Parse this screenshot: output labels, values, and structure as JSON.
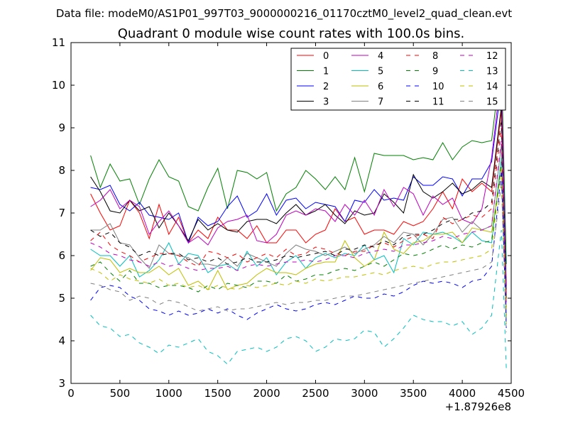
{
  "figure": {
    "suptitle": "Data file: modeM0/AS1P01_997T03_9000000216_01170cztM0_level2_quad_clean.evt",
    "title": "Quadrant 0 module wise count rates with 100.0s bins.",
    "x_offset_label": "+1.87926e8"
  },
  "chart_data": {
    "type": "line",
    "title": "Quadrant 0 module wise count rates with 100.0s bins.",
    "xlabel": "",
    "ylabel": "",
    "xlim": [
      0,
      4500
    ],
    "ylim": [
      3,
      11
    ],
    "x_offset": "+1.87926e8",
    "grid": false,
    "legend_position": "top-right",
    "legend_columns": 4,
    "xticks": [
      0,
      500,
      1000,
      1500,
      2000,
      2500,
      3000,
      3500,
      4000,
      4500
    ],
    "xtick_labels": [
      "0",
      "500",
      "1000",
      "1500",
      "2000",
      "2500",
      "3000",
      "3500",
      "4000",
      "4500"
    ],
    "yticks": [
      3,
      4,
      5,
      6,
      7,
      8,
      9,
      10,
      11
    ],
    "ytick_labels": [
      "3",
      "4",
      "5",
      "6",
      "7",
      "8",
      "9",
      "10",
      "11"
    ],
    "x": [
      200,
      300,
      400,
      500,
      600,
      700,
      800,
      900,
      1000,
      1100,
      1200,
      1300,
      1400,
      1500,
      1600,
      1700,
      1800,
      1900,
      2000,
      2100,
      2200,
      2300,
      2400,
      2500,
      2600,
      2700,
      2800,
      2900,
      3000,
      3100,
      3200,
      3300,
      3400,
      3500,
      3600,
      3700,
      3800,
      3900,
      4000,
      4100,
      4200,
      4300,
      4400,
      4450
    ],
    "series": [
      {
        "name": "0",
        "color": "#ff0000",
        "dash": "solid",
        "values": [
          7.45,
          7.0,
          6.6,
          6.7,
          7.3,
          7.0,
          6.4,
          7.2,
          6.5,
          6.9,
          6.3,
          6.6,
          6.4,
          6.9,
          6.6,
          6.6,
          6.4,
          6.7,
          6.3,
          6.3,
          6.6,
          6.6,
          6.3,
          6.5,
          6.6,
          7.1,
          6.8,
          6.9,
          6.5,
          6.6,
          6.6,
          6.5,
          6.8,
          6.7,
          6.8,
          7.1,
          7.5,
          7.1,
          7.8,
          7.5,
          7.7,
          7.5,
          9.4,
          5.3
        ]
      },
      {
        "name": "1",
        "color": "#008000",
        "dash": "solid",
        "values": [
          8.35,
          7.6,
          8.15,
          7.75,
          7.8,
          7.2,
          7.8,
          8.25,
          7.85,
          7.75,
          7.15,
          7.05,
          7.6,
          8.05,
          7.1,
          8.0,
          7.95,
          7.8,
          7.95,
          7.05,
          7.45,
          7.6,
          8.0,
          7.8,
          7.55,
          7.85,
          7.55,
          8.3,
          7.5,
          8.4,
          8.35,
          8.35,
          8.35,
          8.25,
          8.3,
          8.25,
          8.65,
          8.25,
          8.55,
          8.7,
          8.65,
          8.7,
          10.6,
          5.8
        ]
      },
      {
        "name": "2",
        "color": "#0000ff",
        "dash": "solid",
        "values": [
          7.6,
          7.55,
          7.65,
          7.2,
          7.05,
          7.25,
          6.95,
          6.9,
          6.85,
          7.0,
          6.3,
          6.9,
          6.7,
          6.8,
          7.15,
          7.4,
          6.9,
          7.05,
          7.45,
          6.95,
          7.3,
          7.35,
          7.1,
          7.25,
          7.2,
          7.15,
          6.8,
          7.3,
          7.25,
          7.55,
          7.3,
          7.35,
          7.3,
          7.85,
          7.65,
          7.65,
          7.85,
          7.8,
          7.4,
          7.8,
          7.8,
          8.2,
          10.0,
          5.2
        ]
      },
      {
        "name": "3",
        "color": "#000000",
        "dash": "solid",
        "values": [
          7.85,
          7.5,
          7.05,
          7.0,
          7.3,
          7.05,
          7.15,
          6.65,
          7.0,
          6.7,
          6.35,
          6.85,
          6.6,
          6.75,
          6.6,
          6.55,
          6.8,
          6.85,
          6.85,
          6.75,
          7.0,
          7.2,
          6.95,
          7.05,
          7.2,
          6.95,
          6.75,
          7.05,
          6.95,
          7.0,
          7.45,
          7.25,
          7.0,
          7.9,
          7.5,
          7.35,
          7.5,
          7.7,
          7.45,
          7.55,
          7.75,
          7.6,
          9.5,
          5.0
        ]
      },
      {
        "name": "4",
        "color": "#bf00bf",
        "dash": "solid",
        "values": [
          7.15,
          7.3,
          7.55,
          7.1,
          7.3,
          7.15,
          6.5,
          6.8,
          7.05,
          6.7,
          6.3,
          6.45,
          6.25,
          6.65,
          6.8,
          6.85,
          6.95,
          6.35,
          6.3,
          6.5,
          6.95,
          7.05,
          6.95,
          7.1,
          7.05,
          6.8,
          7.2,
          6.95,
          7.3,
          6.95,
          7.55,
          7.15,
          7.6,
          7.45,
          6.95,
          7.4,
          7.2,
          7.35,
          6.85,
          6.75,
          7.1,
          8.3,
          10.3,
          4.6
        ]
      },
      {
        "name": "5",
        "color": "#00bfbf",
        "dash": "solid",
        "values": [
          6.15,
          6.0,
          6.0,
          5.75,
          6.0,
          5.5,
          5.65,
          5.9,
          6.3,
          5.8,
          6.05,
          6.0,
          5.6,
          5.75,
          5.8,
          5.65,
          6.1,
          5.75,
          5.95,
          5.55,
          5.85,
          6.0,
          5.7,
          5.95,
          6.05,
          5.95,
          6.05,
          6.0,
          6.25,
          5.9,
          6.0,
          5.6,
          6.4,
          6.25,
          6.55,
          6.5,
          6.55,
          6.45,
          6.3,
          6.55,
          6.35,
          6.3,
          8.3,
          4.5
        ]
      },
      {
        "name": "6",
        "color": "#bfbf00",
        "dash": "solid",
        "values": [
          5.65,
          5.95,
          5.9,
          5.6,
          5.7,
          5.6,
          5.6,
          5.75,
          5.55,
          5.7,
          5.3,
          5.4,
          5.2,
          5.65,
          5.2,
          5.3,
          5.35,
          5.55,
          5.7,
          5.6,
          5.6,
          5.55,
          5.7,
          5.8,
          5.85,
          5.85,
          6.35,
          5.95,
          5.75,
          5.9,
          6.55,
          6.15,
          6.05,
          6.3,
          6.35,
          6.5,
          6.5,
          6.55,
          6.3,
          6.65,
          6.6,
          6.55,
          8.0,
          4.4
        ]
      },
      {
        "name": "7",
        "color": "#808080",
        "dash": "solid",
        "values": [
          6.6,
          6.6,
          6.75,
          6.3,
          6.25,
          5.95,
          5.7,
          6.25,
          6.05,
          6.0,
          5.95,
          5.8,
          5.8,
          5.75,
          5.95,
          5.75,
          6.05,
          5.95,
          5.85,
          5.75,
          6.05,
          6.25,
          6.15,
          6.1,
          6.0,
          6.1,
          6.2,
          6.05,
          6.15,
          6.25,
          6.45,
          6.3,
          6.55,
          6.5,
          6.25,
          6.5,
          6.85,
          6.9,
          6.55,
          6.8,
          6.6,
          6.7,
          8.6,
          4.6
        ]
      },
      {
        "name": "8",
        "color": "#ff0000",
        "dash": "dashed",
        "values": [
          6.35,
          6.55,
          6.25,
          6.1,
          6.0,
          5.85,
          5.95,
          6.05,
          6.05,
          6.0,
          5.85,
          5.75,
          6.1,
          6.05,
          5.95,
          6.05,
          5.85,
          5.95,
          6.05,
          5.95,
          6.15,
          6.0,
          6.05,
          6.2,
          6.15,
          6.05,
          6.0,
          6.1,
          6.1,
          6.25,
          6.3,
          6.2,
          6.35,
          6.45,
          6.5,
          6.4,
          6.9,
          6.75,
          6.85,
          6.95,
          6.9,
          7.1,
          9.0,
          5.0
        ]
      },
      {
        "name": "9",
        "color": "#008000",
        "dash": "dashed",
        "values": [
          5.75,
          5.85,
          5.6,
          5.4,
          5.65,
          5.35,
          5.35,
          5.25,
          5.3,
          5.3,
          5.25,
          5.15,
          5.3,
          5.2,
          5.35,
          5.3,
          5.25,
          5.4,
          5.4,
          5.35,
          5.55,
          5.4,
          5.45,
          5.55,
          5.55,
          5.65,
          5.7,
          5.65,
          5.75,
          5.85,
          5.75,
          5.9,
          6.05,
          6.0,
          6.05,
          6.15,
          6.25,
          6.15,
          6.25,
          6.2,
          6.3,
          6.35,
          8.2,
          4.8
        ]
      },
      {
        "name": "10",
        "color": "#0000ff",
        "dash": "dashed",
        "values": [
          4.95,
          5.25,
          5.3,
          5.25,
          5.05,
          4.95,
          4.75,
          4.7,
          4.6,
          4.7,
          4.6,
          4.65,
          4.75,
          4.65,
          4.75,
          4.6,
          4.5,
          4.65,
          4.75,
          4.85,
          4.75,
          4.7,
          4.75,
          4.85,
          4.9,
          4.85,
          4.95,
          5.05,
          5.0,
          5.0,
          5.1,
          5.05,
          5.15,
          5.3,
          5.4,
          5.35,
          5.4,
          5.35,
          5.25,
          5.4,
          5.45,
          5.75,
          8.0,
          4.3
        ]
      },
      {
        "name": "11",
        "color": "#000000",
        "dash": "dashed",
        "values": [
          6.6,
          6.45,
          6.55,
          6.3,
          6.2,
          6.0,
          6.1,
          6.0,
          6.05,
          6.05,
          5.9,
          5.95,
          5.85,
          5.95,
          5.8,
          5.85,
          5.95,
          5.85,
          5.85,
          5.9,
          6.0,
          5.95,
          6.0,
          6.05,
          6.1,
          6.0,
          6.15,
          6.15,
          6.25,
          6.2,
          6.35,
          6.25,
          6.45,
          6.5,
          6.5,
          6.6,
          6.75,
          6.85,
          6.85,
          7.0,
          7.05,
          7.25,
          9.2,
          5.0
        ]
      },
      {
        "name": "12",
        "color": "#bf00bf",
        "dash": "dashed",
        "values": [
          6.3,
          6.2,
          6.05,
          6.0,
          5.9,
          5.85,
          5.75,
          5.85,
          5.75,
          5.8,
          5.7,
          5.65,
          5.7,
          5.7,
          5.75,
          5.65,
          5.75,
          5.8,
          5.75,
          5.8,
          5.85,
          5.85,
          5.9,
          5.85,
          5.9,
          6.0,
          6.0,
          5.95,
          6.05,
          6.1,
          6.15,
          6.1,
          6.25,
          6.25,
          6.3,
          6.35,
          6.45,
          6.4,
          6.5,
          6.55,
          6.6,
          6.7,
          8.7,
          4.9
        ]
      },
      {
        "name": "13",
        "color": "#00bfbf",
        "dash": "dashed",
        "values": [
          4.6,
          4.35,
          4.3,
          4.1,
          4.15,
          3.95,
          3.85,
          3.7,
          3.9,
          3.85,
          3.95,
          4.05,
          3.75,
          3.65,
          3.45,
          3.75,
          3.8,
          3.85,
          3.75,
          3.85,
          4.05,
          4.1,
          4.0,
          3.75,
          3.85,
          4.05,
          4.0,
          4.05,
          4.25,
          4.2,
          3.85,
          4.05,
          4.3,
          4.6,
          4.5,
          4.45,
          4.45,
          4.35,
          4.45,
          4.15,
          4.3,
          4.6,
          6.6,
          3.35
        ]
      },
      {
        "name": "14",
        "color": "#bfbf00",
        "dash": "dashed",
        "values": [
          5.7,
          5.6,
          5.4,
          5.55,
          5.45,
          5.4,
          5.35,
          5.45,
          5.3,
          5.35,
          5.25,
          5.3,
          5.2,
          5.3,
          5.25,
          5.2,
          5.3,
          5.25,
          5.3,
          5.35,
          5.3,
          5.4,
          5.35,
          5.45,
          5.4,
          5.45,
          5.5,
          5.5,
          5.55,
          5.6,
          5.55,
          5.65,
          5.7,
          5.75,
          5.7,
          5.8,
          5.85,
          5.85,
          5.9,
          5.95,
          6.0,
          6.15,
          8.1,
          4.6
        ]
      },
      {
        "name": "15",
        "color": "#808080",
        "dash": "dashed",
        "values": [
          5.35,
          5.3,
          5.2,
          5.15,
          4.95,
          5.05,
          5.0,
          4.85,
          4.95,
          4.9,
          4.8,
          4.7,
          4.75,
          4.8,
          4.7,
          4.75,
          4.75,
          4.8,
          4.85,
          4.9,
          4.85,
          4.9,
          4.9,
          4.95,
          4.95,
          5.0,
          5.05,
          5.05,
          5.1,
          5.15,
          5.2,
          5.25,
          5.3,
          5.35,
          5.4,
          5.45,
          5.5,
          5.55,
          5.6,
          5.65,
          5.7,
          5.85,
          7.7,
          4.2
        ]
      }
    ]
  }
}
